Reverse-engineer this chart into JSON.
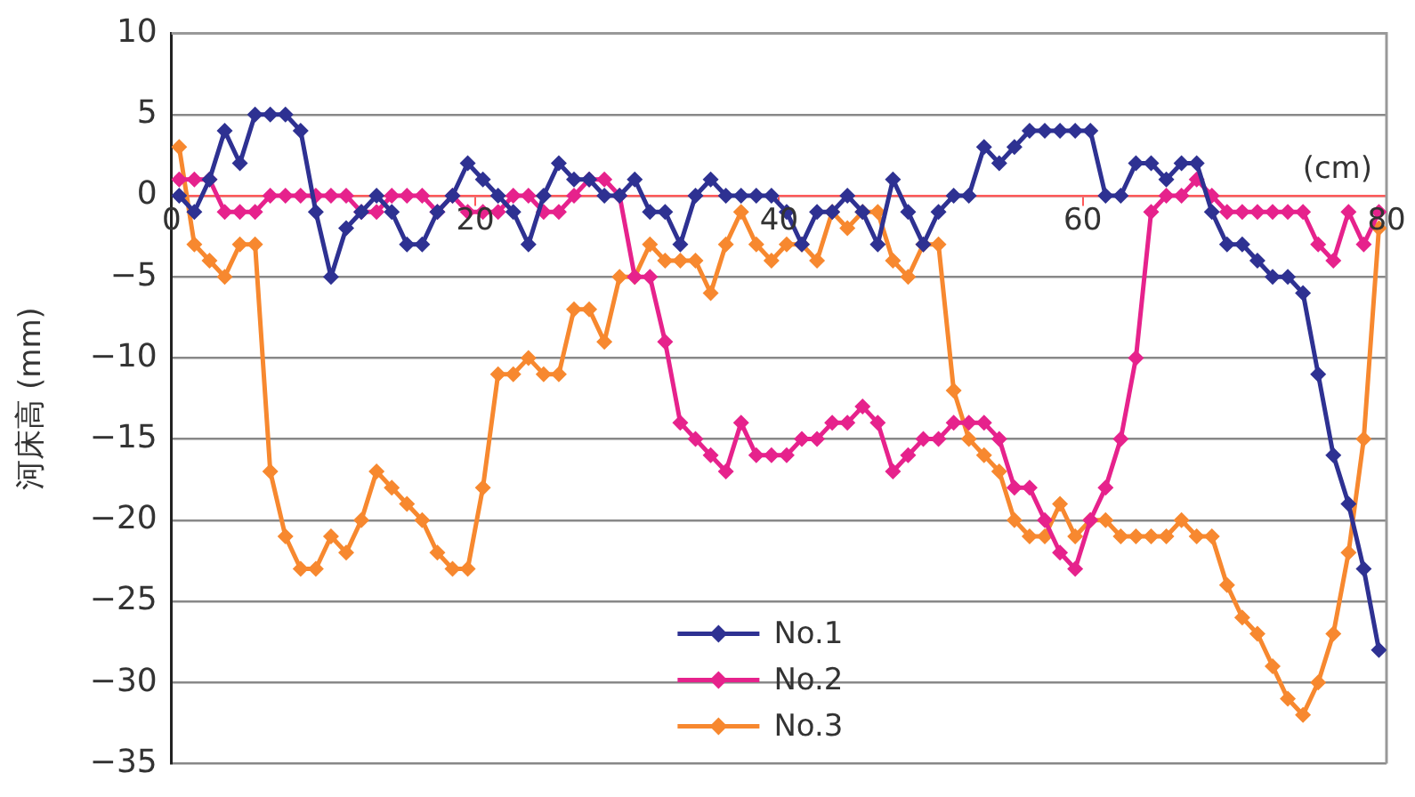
{
  "chart_data": {
    "type": "line",
    "xlabel": "(cm)",
    "ylabel": "河床高 (mm)",
    "x": [
      0.5,
      1.5,
      2.5,
      3.5,
      4.5,
      5.5,
      6.5,
      7.5,
      8.5,
      9.5,
      10.5,
      11.5,
      12.5,
      13.5,
      14.5,
      15.5,
      16.5,
      17.5,
      18.5,
      19.5,
      20.5,
      21.5,
      22.5,
      23.5,
      24.5,
      25.5,
      26.5,
      27.5,
      28.5,
      29.5,
      30.5,
      31.5,
      32.5,
      33.5,
      34.5,
      35.5,
      36.5,
      37.5,
      38.5,
      39.5,
      40.5,
      41.5,
      42.5,
      43.5,
      44.5,
      45.5,
      46.5,
      47.5,
      48.5,
      49.5,
      50.5,
      51.5,
      52.5,
      53.5,
      54.5,
      55.5,
      56.5,
      57.5,
      58.5,
      59.5,
      60.5,
      61.5,
      62.5,
      63.5,
      64.5,
      65.5,
      66.5,
      67.5,
      68.5,
      69.5,
      70.5,
      71.5,
      72.5,
      73.5,
      74.5,
      75.5,
      76.5,
      77.5,
      78.5,
      79.5
    ],
    "series": [
      {
        "name": "No.1",
        "color": "#2e3192",
        "values": [
          0,
          -1,
          1,
          4,
          2,
          5,
          5,
          5,
          4,
          -1,
          -5,
          -2,
          -1,
          0,
          -1,
          -3,
          -3,
          -1,
          0,
          2,
          1,
          0,
          -1,
          -3,
          0,
          2,
          1,
          1,
          0,
          0,
          1,
          -1,
          -1,
          -3,
          0,
          1,
          0,
          0,
          0,
          0,
          -1,
          -3,
          -1,
          -1,
          0,
          -1,
          -3,
          1,
          -1,
          -3,
          -1,
          0,
          0,
          3,
          2,
          3,
          4,
          4,
          4,
          4,
          4,
          0,
          0,
          2,
          2,
          1,
          2,
          2,
          -1,
          -3,
          -3,
          -4,
          -5,
          -5,
          -6,
          -11,
          -16,
          -19,
          -23,
          -28
        ]
      },
      {
        "name": "No.2",
        "color": "#e6228c",
        "values": [
          1,
          1,
          1,
          -1,
          -1,
          -1,
          0,
          0,
          0,
          0,
          0,
          0,
          -1,
          -1,
          0,
          0,
          0,
          -1,
          0,
          -1,
          -1,
          -1,
          0,
          0,
          -1,
          -1,
          0,
          1,
          1,
          0,
          -5,
          -5,
          -9,
          -14,
          -15,
          -16,
          -17,
          -14,
          -16,
          -16,
          -16,
          -15,
          -15,
          -14,
          -14,
          -13,
          -14,
          -17,
          -16,
          -15,
          -15,
          -14,
          -14,
          -14,
          -15,
          -18,
          -18,
          -20,
          -22,
          -23,
          -20,
          -18,
          -15,
          -10,
          -1,
          0,
          0,
          1,
          0,
          -1,
          -1,
          -1,
          -1,
          -1,
          -1,
          -3,
          -4,
          -1,
          -3,
          -1
        ]
      },
      {
        "name": "No.3",
        "color": "#f7882f",
        "values": [
          3,
          -3,
          -4,
          -5,
          -3,
          -3,
          -17,
          -21,
          -23,
          -23,
          -21,
          -22,
          -20,
          -17,
          -18,
          -19,
          -20,
          -22,
          -23,
          -23,
          -18,
          -11,
          -11,
          -10,
          -11,
          -11,
          -7,
          -7,
          -9,
          -5,
          -5,
          -3,
          -4,
          -4,
          -4,
          -6,
          -3,
          -1,
          -3,
          -4,
          -3,
          -3,
          -4,
          -1,
          -2,
          -1,
          -1,
          -4,
          -5,
          -3,
          -3,
          -12,
          -15,
          -16,
          -17,
          -20,
          -21,
          -21,
          -19,
          -21,
          -20,
          -20,
          -21,
          -21,
          -21,
          -21,
          -20,
          -21,
          -21,
          -24,
          -26,
          -27,
          -29,
          -31,
          -32,
          -30,
          -27,
          -22,
          -15,
          -2
        ]
      }
    ],
    "xlim": [
      0,
      80
    ],
    "xticks": [
      0,
      20,
      40,
      60,
      80
    ],
    "ylim": [
      -35,
      10
    ],
    "yticks": [
      -35,
      -30,
      -25,
      -20,
      -15,
      -10,
      -5,
      0,
      5,
      10
    ],
    "grid": "y",
    "legend": "bottom",
    "marker": "diamond",
    "line_style": "solid"
  }
}
